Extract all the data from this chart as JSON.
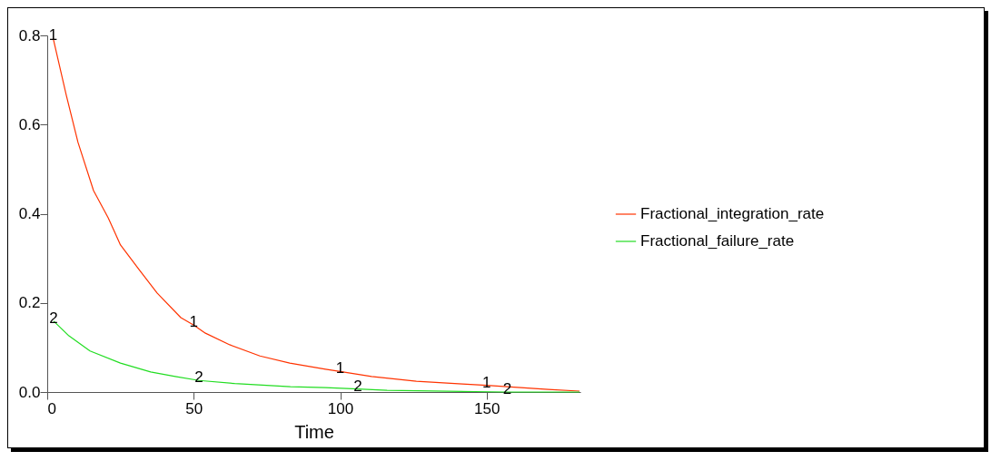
{
  "chart_data": {
    "type": "line",
    "xlabel": "Time",
    "xlim": [
      0,
      182
    ],
    "xticks": [
      0,
      50,
      100,
      150
    ],
    "ylim": [
      0,
      0.8
    ],
    "yticks": [
      {
        "value": 0,
        "label": "0.0"
      },
      0.2,
      0.4,
      0.6,
      0.8
    ],
    "grid": false,
    "legend": "right",
    "series": [
      {
        "name": "Fractional_integration_rate",
        "color": "#ff3300",
        "x": [
          2,
          6.5,
          10.5,
          15.8,
          20.8,
          25,
          31.3,
          37.5,
          45.6,
          50,
          54,
          62.3,
          72.6,
          82.8,
          95,
          100,
          110.7,
          126,
          141.7,
          150,
          157,
          171,
          181.7
        ],
        "values": [
          0.794,
          0.666,
          0.56,
          0.452,
          0.391,
          0.33,
          0.275,
          0.222,
          0.167,
          0.15,
          0.132,
          0.106,
          0.081,
          0.065,
          0.051,
          0.046,
          0.035,
          0.024,
          0.018,
          0.015,
          0.012,
          0.006,
          0.002
        ]
      },
      {
        "name": "Fractional_failure_rate",
        "color": "#22dd22",
        "x": [
          2.2,
          7.4,
          14.6,
          25,
          35.3,
          43.7,
          51.8,
          64,
          83,
          95,
          106,
          116,
          146,
          157,
          181.7
        ],
        "values": [
          0.159,
          0.126,
          0.092,
          0.065,
          0.045,
          0.035,
          0.026,
          0.019,
          0.012,
          0.01,
          0.007,
          0.004,
          0.001,
          0.0,
          0.0
        ]
      }
    ],
    "annotations": [
      {
        "text": "1",
        "x": 2,
        "y": 0.794
      },
      {
        "text": "1",
        "x": 50,
        "y": 0.15
      },
      {
        "text": "1",
        "x": 100,
        "y": 0.046
      },
      {
        "text": "1",
        "x": 150,
        "y": 0.015
      },
      {
        "text": "2",
        "x": 2.2,
        "y": 0.159
      },
      {
        "text": "2",
        "x": 51.8,
        "y": 0.026
      },
      {
        "text": "2",
        "x": 106,
        "y": 0.007
      },
      {
        "text": "2",
        "x": 157,
        "y": 0.0
      }
    ]
  }
}
